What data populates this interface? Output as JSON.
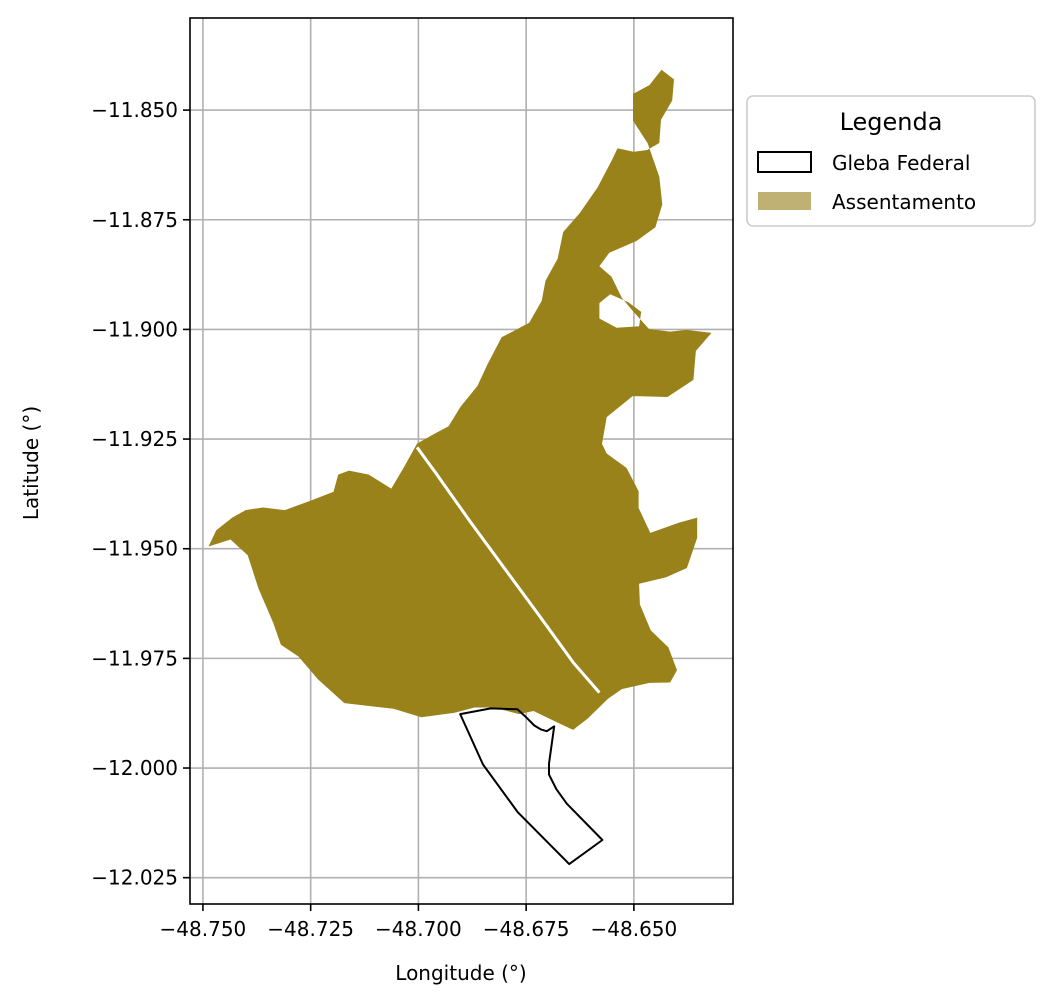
{
  "colors": {
    "assentamento_fill": "#9a821a",
    "assentamento_legend_fill": "#bfb173",
    "gleba_stroke": "#000000",
    "grid": "#b0b0b0",
    "road_line": "#ffffff"
  },
  "chart_data": {
    "type": "map",
    "xlabel": "Longitude (°)",
    "ylabel": "Latitude (°)",
    "xlim": [
      -48.753,
      -48.627
    ],
    "ylim": [
      -12.031,
      -11.829
    ],
    "xticks": [
      -48.75,
      -48.725,
      -48.7,
      -48.675,
      -48.65
    ],
    "xtick_labels": [
      "−48.750",
      "−48.725",
      "−48.700",
      "−48.675",
      "−48.650"
    ],
    "yticks": [
      -11.85,
      -11.875,
      -11.9,
      -11.925,
      -11.95,
      -11.975,
      -12.0,
      -12.025
    ],
    "ytick_labels": [
      "−11.850",
      "−11.875",
      "−11.900",
      "−11.925",
      "−11.950",
      "−11.975",
      "−12.000",
      "−12.025"
    ],
    "grid": true,
    "legend": {
      "title": "Legenda",
      "placement": "outside right top",
      "entries": [
        {
          "label": "Gleba Federal",
          "style": "outline"
        },
        {
          "label": "Assentamento",
          "style": "filled"
        }
      ]
    },
    "layers": [
      {
        "name": "Assentamento",
        "kind": "polygon",
        "coordinates": [
          [
            -48.7487,
            -11.9495
          ],
          [
            -48.7469,
            -11.9458
          ],
          [
            -48.7432,
            -11.9429
          ],
          [
            -48.7401,
            -11.9412
          ],
          [
            -48.7361,
            -11.9406
          ],
          [
            -48.731,
            -11.9412
          ],
          [
            -48.7246,
            -11.9389
          ],
          [
            -48.7197,
            -11.937
          ],
          [
            -48.7186,
            -11.9331
          ],
          [
            -48.7161,
            -11.9322
          ],
          [
            -48.7115,
            -11.9331
          ],
          [
            -48.7063,
            -11.9363
          ],
          [
            -48.7033,
            -11.9313
          ],
          [
            -48.7003,
            -11.926
          ],
          [
            -48.6961,
            -11.9237
          ],
          [
            -48.693,
            -11.9221
          ],
          [
            -48.6902,
            -11.9176
          ],
          [
            -48.6863,
            -11.9129
          ],
          [
            -48.684,
            -11.908
          ],
          [
            -48.6807,
            -11.9018
          ],
          [
            -48.6743,
            -11.8985
          ],
          [
            -48.6714,
            -11.8935
          ],
          [
            -48.6705,
            -11.8889
          ],
          [
            -48.6677,
            -11.8839
          ],
          [
            -48.6664,
            -11.8778
          ],
          [
            -48.6626,
            -11.8735
          ],
          [
            -48.6584,
            -11.8676
          ],
          [
            -48.6551,
            -11.8614
          ],
          [
            -48.6538,
            -11.8587
          ],
          [
            -48.6501,
            -11.8595
          ],
          [
            -48.6469,
            -11.8591
          ],
          [
            -48.6441,
            -11.8575
          ],
          [
            -48.6437,
            -11.8522
          ],
          [
            -48.6411,
            -11.8478
          ],
          [
            -48.6407,
            -11.843
          ],
          [
            -48.6436,
            -11.8408
          ],
          [
            -48.6464,
            -11.8443
          ],
          [
            -48.6502,
            -11.8463
          ],
          [
            -48.6502,
            -11.8524
          ],
          [
            -48.6468,
            -11.8576
          ],
          [
            -48.6441,
            -11.8652
          ],
          [
            -48.6434,
            -11.8715
          ],
          [
            -48.645,
            -11.8767
          ],
          [
            -48.6493,
            -11.8798
          ],
          [
            -48.6557,
            -11.8825
          ],
          [
            -48.658,
            -11.8856
          ],
          [
            -48.6552,
            -11.888
          ],
          [
            -48.6528,
            -11.8928
          ],
          [
            -48.6505,
            -11.8955
          ],
          [
            -48.6465,
            -11.8999
          ],
          [
            -48.6416,
            -11.9005
          ],
          [
            -48.6378,
            -11.9001
          ],
          [
            -48.632,
            -11.9008
          ],
          [
            -48.6356,
            -11.9049
          ],
          [
            -48.6362,
            -11.9115
          ],
          [
            -48.6422,
            -11.9154
          ],
          [
            -48.6503,
            -11.9152
          ],
          [
            -48.6563,
            -11.92
          ],
          [
            -48.6574,
            -11.9261
          ],
          [
            -48.6563,
            -11.9283
          ],
          [
            -48.6517,
            -11.9316
          ],
          [
            -48.6489,
            -11.9369
          ],
          [
            -48.6489,
            -11.9407
          ],
          [
            -48.6462,
            -11.9464
          ],
          [
            -48.6396,
            -11.9441
          ],
          [
            -48.6353,
            -11.9429
          ],
          [
            -48.6353,
            -11.9475
          ],
          [
            -48.6377,
            -11.9544
          ],
          [
            -48.6425,
            -11.9565
          ],
          [
            -48.6488,
            -11.958
          ],
          [
            -48.6486,
            -11.9627
          ],
          [
            -48.6461,
            -11.9686
          ],
          [
            -48.642,
            -11.9725
          ],
          [
            -48.64,
            -11.9777
          ],
          [
            -48.6416,
            -11.9805
          ],
          [
            -48.6464,
            -11.9806
          ],
          [
            -48.6528,
            -11.982
          ],
          [
            -48.656,
            -11.9842
          ],
          [
            -48.6607,
            -11.9887
          ],
          [
            -48.6641,
            -11.9913
          ],
          [
            -48.668,
            -11.9895
          ],
          [
            -48.6733,
            -11.987
          ],
          [
            -48.6766,
            -11.9877
          ],
          [
            -48.6825,
            -11.9862
          ],
          [
            -48.687,
            -11.9862
          ],
          [
            -48.6916,
            -11.9874
          ],
          [
            -48.6993,
            -11.9884
          ],
          [
            -48.7058,
            -11.9865
          ],
          [
            -48.7172,
            -11.9852
          ],
          [
            -48.7233,
            -11.9798
          ],
          [
            -48.7278,
            -11.9746
          ],
          [
            -48.7319,
            -11.9719
          ],
          [
            -48.7337,
            -11.9669
          ],
          [
            -48.7371,
            -11.9591
          ],
          [
            -48.7396,
            -11.9515
          ],
          [
            -48.7436,
            -11.9479
          ]
        ],
        "holes": [
          [
            [
              -48.6555,
              -11.892
            ],
            [
              -48.6513,
              -11.8938
            ],
            [
              -48.6483,
              -11.896
            ],
            [
              -48.6488,
              -11.8993
            ],
            [
              -48.654,
              -11.8996
            ],
            [
              -48.658,
              -11.8975
            ],
            [
              -48.658,
              -11.894
            ]
          ]
        ]
      },
      {
        "name": "Road",
        "kind": "line",
        "coordinates": [
          [
            -48.7003,
            -11.9269
          ],
          [
            -48.696,
            -11.9327
          ],
          [
            -48.688,
            -11.9438
          ],
          [
            -48.68,
            -11.9545
          ],
          [
            -48.672,
            -11.9652
          ],
          [
            -48.664,
            -11.976
          ],
          [
            -48.658,
            -11.9828
          ]
        ]
      },
      {
        "name": "Gleba Federal",
        "kind": "polygon",
        "coordinates": [
          [
            -48.6903,
            -11.9877
          ],
          [
            -48.6832,
            -11.9864
          ],
          [
            -48.677,
            -11.9866
          ],
          [
            -48.675,
            -11.9884
          ],
          [
            -48.6731,
            -11.9903
          ],
          [
            -48.6716,
            -11.9912
          ],
          [
            -48.6702,
            -11.9916
          ],
          [
            -48.6685,
            -11.9905
          ],
          [
            -48.6697,
            -11.999
          ],
          [
            -48.6697,
            -12.0015
          ],
          [
            -48.668,
            -12.0048
          ],
          [
            -48.6656,
            -12.0081
          ],
          [
            -48.6573,
            -12.0164
          ],
          [
            -48.665,
            -12.0219
          ],
          [
            -48.677,
            -12.01
          ],
          [
            -48.685,
            -11.9992
          ]
        ]
      }
    ]
  }
}
